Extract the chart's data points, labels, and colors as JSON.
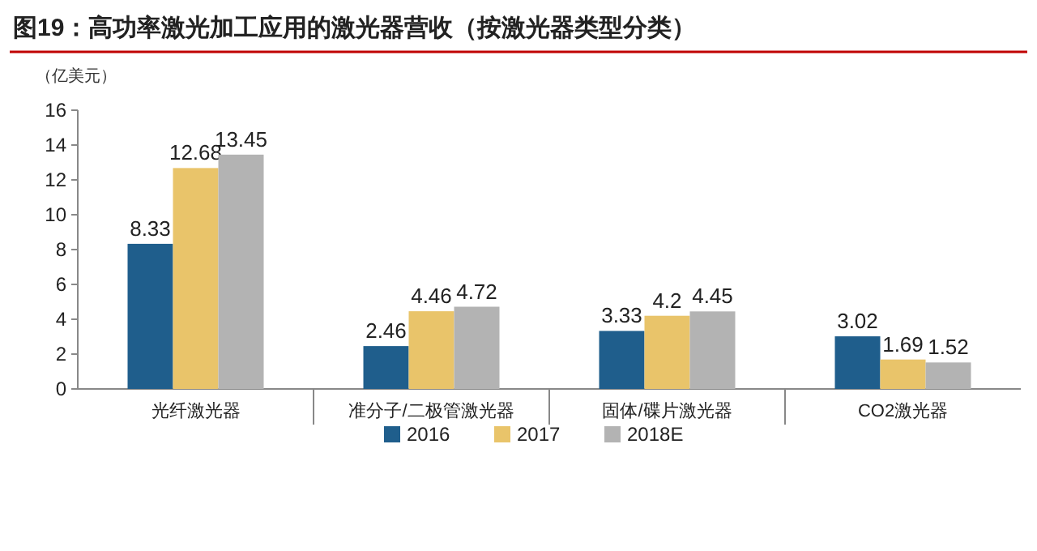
{
  "chart_data": {
    "type": "bar",
    "title": "图19：高功率激光加工应用的激光器营收（按激光器类型分类）",
    "ylabel": "（亿美元）",
    "categories": [
      "光纤激光器",
      "准分子/二极管激光器",
      "固体/碟片激光器",
      "CO2激光器"
    ],
    "series": [
      {
        "name": "2016",
        "color": "#1f5e8c",
        "values": [
          8.33,
          2.46,
          3.33,
          3.02
        ]
      },
      {
        "name": "2017",
        "color": "#e9c46a",
        "values": [
          12.68,
          4.46,
          4.2,
          1.69
        ]
      },
      {
        "name": "2018E",
        "color": "#b3b3b3",
        "values": [
          13.45,
          4.72,
          4.45,
          1.52
        ]
      }
    ],
    "ylim": [
      0,
      16
    ],
    "yticks": [
      0,
      2,
      4,
      6,
      8,
      10,
      12,
      14,
      16
    ],
    "data_labels": true,
    "legend": "bottom",
    "grid": false
  }
}
